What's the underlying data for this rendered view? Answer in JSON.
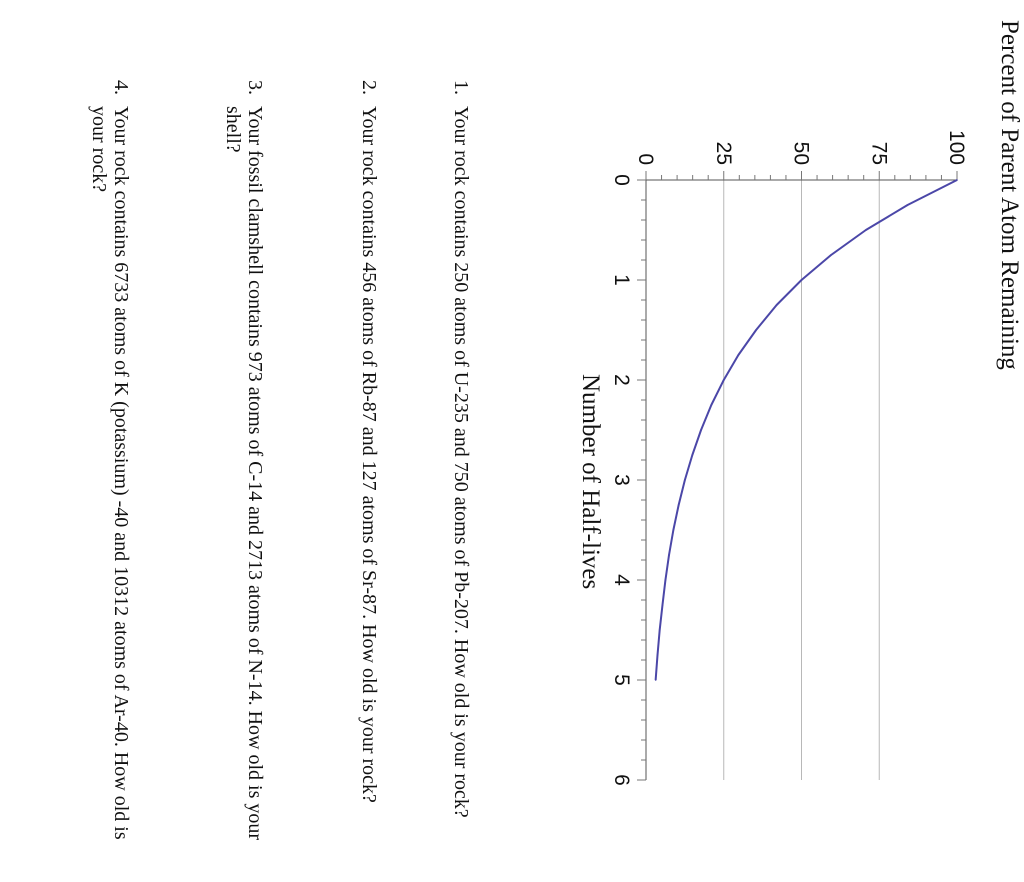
{
  "chart_data": {
    "type": "line",
    "title": "",
    "ylabel": "Percent of Parent Atom Remaining",
    "xlabel": "Number of Half-lives",
    "xlim": [
      0,
      6
    ],
    "ylim": [
      0,
      100
    ],
    "x_ticks": [
      "0",
      "1",
      "2",
      "3",
      "4",
      "5",
      "6"
    ],
    "y_ticks": [
      "0",
      "25",
      "50",
      "75",
      "100"
    ],
    "grid": "horizontal at 25, 50, 75",
    "series": [
      {
        "color": "#4b47a8",
        "x": [
          0,
          0.25,
          0.5,
          0.75,
          1,
          1.25,
          1.5,
          1.75,
          2,
          2.25,
          2.5,
          2.75,
          3,
          3.25,
          3.5,
          3.75,
          4,
          4.25,
          4.5,
          4.75,
          5
        ],
        "y": [
          100,
          84.1,
          70.7,
          59.5,
          50,
          42,
          35.4,
          29.7,
          25,
          21,
          17.7,
          14.9,
          12.5,
          10.5,
          8.8,
          7.4,
          6.25,
          5.3,
          4.4,
          3.7,
          3.1
        ]
      }
    ]
  },
  "questions": [
    {
      "num": "1.",
      "text": "Your rock contains 250 atoms of U-235 and 750 atoms of Pb-207. How old is your rock?"
    },
    {
      "num": "2.",
      "text": "Your rock contains 456 atoms of Rb-87 and 127 atoms of Sr-87. How old is your rock?"
    },
    {
      "num": "3.",
      "text": "Your fossil clamshell contains 973 atoms of C-14 and 2713 atoms of N-14. How old is your shell?"
    },
    {
      "num": "4.",
      "text": "Your rock contains 6733 atoms of K (potassium) -40 and 10312 atoms of Ar-40. How old is your rock?"
    }
  ]
}
